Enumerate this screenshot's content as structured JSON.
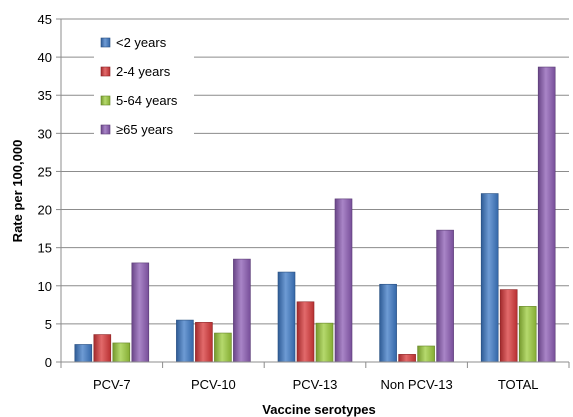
{
  "chart_data": {
    "type": "bar",
    "categories": [
      "PCV-7",
      "PCV-10",
      "PCV-13",
      "Non PCV-13",
      "TOTAL"
    ],
    "series": [
      {
        "name": "<2 years",
        "color": "#3d79c6",
        "values": [
          2.3,
          5.5,
          11.8,
          10.2,
          22.1
        ]
      },
      {
        "name": "2-4 years",
        "color": "#d8383a",
        "values": [
          3.6,
          5.2,
          7.9,
          1.0,
          9.5
        ]
      },
      {
        "name": "5-64 years",
        "color": "#9ccc3c",
        "values": [
          2.5,
          3.8,
          5.1,
          2.1,
          7.3
        ]
      },
      {
        "name": "≥65 years",
        "color": "#8c5cb4",
        "values": [
          13.0,
          13.5,
          21.4,
          17.3,
          38.7
        ]
      }
    ],
    "xlabel": "Vaccine serotypes",
    "ylabel": "Rate per 100,000",
    "ylim": [
      0,
      45
    ],
    "yticks": [
      0,
      5,
      10,
      15,
      20,
      25,
      30,
      35,
      40,
      45
    ],
    "grid": true,
    "legend_position": "top-left"
  }
}
